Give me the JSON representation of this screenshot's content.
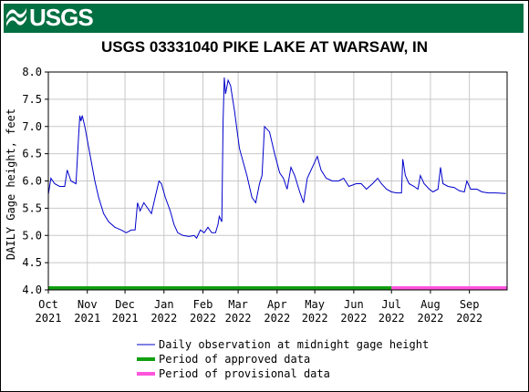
{
  "header": {
    "logo_text": "USGS",
    "brand_color": "#006f41"
  },
  "chart_data": {
    "type": "line",
    "title": "USGS 03331040 PIKE LAKE AT WARSAW, IN",
    "ylabel": "DAILY Gage height, feet",
    "xlabel": "",
    "ylim": [
      4.0,
      8.0
    ],
    "xlim": [
      "2021-10-01",
      "2022-10-01"
    ],
    "yticks": [
      "4.0",
      "4.5",
      "5.0",
      "5.5",
      "6.0",
      "6.5",
      "7.0",
      "7.5",
      "8.0"
    ],
    "xticks": [
      {
        "date": "2021-10-01",
        "month": "Oct",
        "year": "2021"
      },
      {
        "date": "2021-11-01",
        "month": "Nov",
        "year": "2021"
      },
      {
        "date": "2021-12-01",
        "month": "Dec",
        "year": "2021"
      },
      {
        "date": "2022-01-01",
        "month": "Jan",
        "year": "2022"
      },
      {
        "date": "2022-02-01",
        "month": "Feb",
        "year": "2022"
      },
      {
        "date": "2022-03-01",
        "month": "Mar",
        "year": "2022"
      },
      {
        "date": "2022-04-01",
        "month": "Apr",
        "year": "2022"
      },
      {
        "date": "2022-05-01",
        "month": "May",
        "year": "2022"
      },
      {
        "date": "2022-06-01",
        "month": "Jun",
        "year": "2022"
      },
      {
        "date": "2022-07-01",
        "month": "Jul",
        "year": "2022"
      },
      {
        "date": "2022-08-01",
        "month": "Aug",
        "year": "2022"
      },
      {
        "date": "2022-09-01",
        "month": "Sep",
        "year": "2022"
      }
    ],
    "grid": true,
    "series": [
      {
        "name": "Daily observation at midnight gage height",
        "color": "#0000cc",
        "points": [
          [
            "2021-10-01",
            5.75
          ],
          [
            "2021-10-03",
            6.05
          ],
          [
            "2021-10-06",
            5.95
          ],
          [
            "2021-10-10",
            5.9
          ],
          [
            "2021-10-14",
            5.9
          ],
          [
            "2021-10-16",
            6.2
          ],
          [
            "2021-10-19",
            6.0
          ],
          [
            "2021-10-23",
            5.95
          ],
          [
            "2021-10-25",
            6.8
          ],
          [
            "2021-10-26",
            7.2
          ],
          [
            "2021-10-27",
            7.1
          ],
          [
            "2021-10-28",
            7.2
          ],
          [
            "2021-10-30",
            7.0
          ],
          [
            "2021-11-03",
            6.5
          ],
          [
            "2021-11-07",
            6.0
          ],
          [
            "2021-11-10",
            5.7
          ],
          [
            "2021-11-14",
            5.4
          ],
          [
            "2021-11-18",
            5.25
          ],
          [
            "2021-11-23",
            5.15
          ],
          [
            "2021-11-28",
            5.1
          ],
          [
            "2021-12-02",
            5.05
          ],
          [
            "2021-12-06",
            5.1
          ],
          [
            "2021-12-09",
            5.1
          ],
          [
            "2021-12-11",
            5.6
          ],
          [
            "2021-12-13",
            5.45
          ],
          [
            "2021-12-16",
            5.6
          ],
          [
            "2021-12-19",
            5.5
          ],
          [
            "2021-12-22",
            5.4
          ],
          [
            "2021-12-25",
            5.7
          ],
          [
            "2021-12-28",
            6.0
          ],
          [
            "2021-12-30",
            5.95
          ],
          [
            "2022-01-02",
            5.7
          ],
          [
            "2022-01-06",
            5.45
          ],
          [
            "2022-01-09",
            5.2
          ],
          [
            "2022-01-12",
            5.05
          ],
          [
            "2022-01-16",
            5.0
          ],
          [
            "2022-01-21",
            4.98
          ],
          [
            "2022-01-25",
            5.0
          ],
          [
            "2022-01-27",
            4.95
          ],
          [
            "2022-01-30",
            5.1
          ],
          [
            "2022-02-02",
            5.05
          ],
          [
            "2022-02-05",
            5.15
          ],
          [
            "2022-02-08",
            5.05
          ],
          [
            "2022-02-11",
            5.05
          ],
          [
            "2022-02-13",
            5.2
          ],
          [
            "2022-02-14",
            5.35
          ],
          [
            "2022-02-16",
            5.25
          ],
          [
            "2022-02-17",
            7.1
          ],
          [
            "2022-02-18",
            7.9
          ],
          [
            "2022-02-19",
            7.6
          ],
          [
            "2022-02-21",
            7.85
          ],
          [
            "2022-02-23",
            7.75
          ],
          [
            "2022-02-26",
            7.3
          ],
          [
            "2022-03-02",
            6.6
          ],
          [
            "2022-03-05",
            6.35
          ],
          [
            "2022-03-08",
            6.1
          ],
          [
            "2022-03-12",
            5.7
          ],
          [
            "2022-03-15",
            5.6
          ],
          [
            "2022-03-18",
            5.95
          ],
          [
            "2022-03-20",
            6.1
          ],
          [
            "2022-03-22",
            7.0
          ],
          [
            "2022-03-26",
            6.9
          ],
          [
            "2022-03-30",
            6.5
          ],
          [
            "2022-04-03",
            6.15
          ],
          [
            "2022-04-06",
            6.05
          ],
          [
            "2022-04-09",
            5.85
          ],
          [
            "2022-04-12",
            6.25
          ],
          [
            "2022-04-15",
            6.1
          ],
          [
            "2022-04-19",
            5.8
          ],
          [
            "2022-04-22",
            5.6
          ],
          [
            "2022-04-25",
            6.05
          ],
          [
            "2022-04-30",
            6.3
          ],
          [
            "2022-05-03",
            6.45
          ],
          [
            "2022-05-06",
            6.2
          ],
          [
            "2022-05-10",
            6.05
          ],
          [
            "2022-05-15",
            6.0
          ],
          [
            "2022-05-20",
            6.0
          ],
          [
            "2022-05-24",
            6.05
          ],
          [
            "2022-05-28",
            5.9
          ],
          [
            "2022-06-03",
            5.95
          ],
          [
            "2022-06-07",
            5.95
          ],
          [
            "2022-06-11",
            5.85
          ],
          [
            "2022-06-16",
            5.95
          ],
          [
            "2022-06-20",
            6.05
          ],
          [
            "2022-06-23",
            5.95
          ],
          [
            "2022-06-27",
            5.85
          ],
          [
            "2022-07-01",
            5.8
          ],
          [
            "2022-07-05",
            5.78
          ],
          [
            "2022-07-09",
            5.78
          ],
          [
            "2022-07-10",
            6.4
          ],
          [
            "2022-07-12",
            6.1
          ],
          [
            "2022-07-15",
            5.95
          ],
          [
            "2022-07-19",
            5.9
          ],
          [
            "2022-07-22",
            5.85
          ],
          [
            "2022-07-24",
            6.1
          ],
          [
            "2022-07-27",
            5.95
          ],
          [
            "2022-07-31",
            5.85
          ],
          [
            "2022-08-03",
            5.8
          ],
          [
            "2022-08-07",
            5.85
          ],
          [
            "2022-08-09",
            6.25
          ],
          [
            "2022-08-11",
            5.95
          ],
          [
            "2022-08-15",
            5.9
          ],
          [
            "2022-08-20",
            5.88
          ],
          [
            "2022-08-24",
            5.82
          ],
          [
            "2022-08-28",
            5.8
          ],
          [
            "2022-08-30",
            6.0
          ],
          [
            "2022-09-02",
            5.85
          ],
          [
            "2022-09-07",
            5.85
          ],
          [
            "2022-09-11",
            5.8
          ],
          [
            "2022-09-16",
            5.78
          ],
          [
            "2022-09-22",
            5.78
          ],
          [
            "2022-09-30",
            5.77
          ]
        ]
      }
    ],
    "periods": [
      {
        "name": "Period of approved data",
        "color": "#10a010",
        "start": "2021-10-01",
        "end": "2022-07-01"
      },
      {
        "name": "Period of provisional data",
        "color": "#ff55dd",
        "start": "2022-07-01",
        "end": "2022-10-01"
      }
    ]
  }
}
